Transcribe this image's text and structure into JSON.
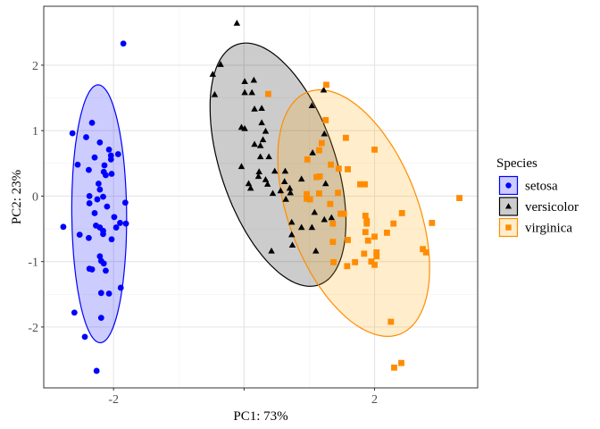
{
  "chart_data": {
    "type": "scatter",
    "title": "",
    "xlabel": "PC1: 73%",
    "ylabel": "PC2: 23%",
    "xlim": [
      -3.07,
      3.58
    ],
    "ylim": [
      -2.93,
      2.9
    ],
    "x_ticks": [
      -2,
      0,
      2
    ],
    "x_tick_labels": [
      "-2",
      "",
      "2"
    ],
    "y_ticks": [
      -2,
      -1,
      0,
      1,
      2
    ],
    "y_tick_labels": [
      "-2",
      "-1",
      "0",
      "1",
      "2"
    ],
    "grid": true,
    "legend": {
      "title": "Species",
      "position": "right"
    },
    "series": [
      {
        "name": "setosa",
        "marker": "circle",
        "color": "#0000ff",
        "ellipse": {
          "fill": "#0000ff",
          "fill_opacity": 0.2,
          "center": [
            -2.22,
            -0.27
          ],
          "semi_major": 1.97,
          "semi_minor": 0.42,
          "angle_deg": 90.5
        },
        "points": [
          [
            -1.85,
            2.33
          ],
          [
            -2.33,
            1.12
          ],
          [
            -2.63,
            0.96
          ],
          [
            -2.42,
            0.9
          ],
          [
            -2.21,
            0.82
          ],
          [
            -2.07,
            0.71
          ],
          [
            -2.04,
            0.62
          ],
          [
            -2.04,
            0.56
          ],
          [
            -2.29,
            0.59
          ],
          [
            -1.93,
            0.64
          ],
          [
            -2.55,
            0.48
          ],
          [
            -2.14,
            0.47
          ],
          [
            -2.15,
            0.37
          ],
          [
            -2.12,
            0.32
          ],
          [
            -2.03,
            0.34
          ],
          [
            -2.38,
            0.4
          ],
          [
            -2.23,
            0.19
          ],
          [
            -2.21,
            0.1
          ],
          [
            -2.25,
            -0.05
          ],
          [
            -2.16,
            -0.01
          ],
          [
            -2.29,
            -0.26
          ],
          [
            -2.1,
            -0.16
          ],
          [
            -2.37,
            0.0
          ],
          [
            -2.37,
            -0.11
          ],
          [
            -1.82,
            -0.1
          ],
          [
            -2.77,
            -0.47
          ],
          [
            -2.52,
            -0.59
          ],
          [
            -2.38,
            -0.64
          ],
          [
            -2.27,
            -0.45
          ],
          [
            -2.21,
            -0.48
          ],
          [
            -2.16,
            -0.53
          ],
          [
            -2.16,
            -0.58
          ],
          [
            -1.96,
            -0.48
          ],
          [
            -1.9,
            -0.41
          ],
          [
            -1.81,
            -0.42
          ],
          [
            -2.03,
            -0.66
          ],
          [
            -2.21,
            -0.92
          ],
          [
            -2.19,
            -0.99
          ],
          [
            -2.15,
            -1.03
          ],
          [
            -2.37,
            -1.11
          ],
          [
            -2.33,
            -1.12
          ],
          [
            -2.12,
            -1.14
          ],
          [
            -1.89,
            -1.4
          ],
          [
            -2.19,
            -1.48
          ],
          [
            -2.07,
            -1.49
          ],
          [
            -2.6,
            -1.78
          ],
          [
            -2.19,
            -1.86
          ],
          [
            -2.44,
            -2.15
          ],
          [
            -2.26,
            -2.67
          ],
          [
            -1.99,
            -0.32
          ]
        ]
      },
      {
        "name": "versicolor",
        "marker": "triangle",
        "color": "#000000",
        "ellipse": {
          "fill": "#000000",
          "fill_opacity": 0.2,
          "center": [
            0.52,
            0.48
          ],
          "semi_major": 1.94,
          "semi_minor": 0.88,
          "angle_deg": -71.2
        },
        "points": [
          [
            -0.11,
            2.64
          ],
          [
            -0.36,
            2.01
          ],
          [
            -0.48,
            1.86
          ],
          [
            -0.45,
            1.55
          ],
          [
            0.01,
            1.75
          ],
          [
            0.15,
            1.77
          ],
          [
            0.01,
            1.58
          ],
          [
            0.12,
            1.58
          ],
          [
            0.16,
            1.33
          ],
          [
            0.27,
            1.34
          ],
          [
            0.27,
            1.12
          ],
          [
            -0.04,
            1.05
          ],
          [
            0.01,
            1.03
          ],
          [
            0.33,
            0.99
          ],
          [
            0.29,
            0.86
          ],
          [
            0.16,
            0.79
          ],
          [
            0.25,
            0.77
          ],
          [
            0.25,
            0.6
          ],
          [
            0.38,
            0.6
          ],
          [
            -0.04,
            0.45
          ],
          [
            0.23,
            0.37
          ],
          [
            0.47,
            0.38
          ],
          [
            0.63,
            0.38
          ],
          [
            0.22,
            0.3
          ],
          [
            0.07,
            0.19
          ],
          [
            0.1,
            0.12
          ],
          [
            0.36,
            0.18
          ],
          [
            0.44,
            0.04
          ],
          [
            0.64,
            -0.05
          ],
          [
            0.56,
            0.08
          ],
          [
            0.62,
            0.22
          ],
          [
            0.7,
            0.12
          ],
          [
            0.71,
            0.05
          ],
          [
            0.88,
            0.26
          ],
          [
            1.25,
            0.19
          ],
          [
            1.08,
            -0.25
          ],
          [
            1.34,
            -0.33
          ],
          [
            0.73,
            -0.4
          ],
          [
            0.88,
            -0.48
          ],
          [
            1.04,
            -0.48
          ],
          [
            1.23,
            -0.36
          ],
          [
            0.73,
            -0.59
          ],
          [
            0.74,
            -0.75
          ],
          [
            0.42,
            -0.84
          ],
          [
            1.1,
            -0.84
          ],
          [
            1.22,
            1.62
          ],
          [
            1.04,
            1.38
          ],
          [
            1.23,
            0.95
          ],
          [
            1.05,
            0.66
          ],
          [
            0.33,
            0.25
          ]
        ]
      },
      {
        "name": "virginica",
        "marker": "square",
        "color": "#ff8c00",
        "ellipse": {
          "fill": "#ffa500",
          "fill_opacity": 0.2,
          "center": [
            1.68,
            -0.26
          ],
          "semi_major": 1.98,
          "semi_minor": 0.99,
          "angle_deg": -69.1
        },
        "points": [
          [
            0.37,
            1.56
          ],
          [
            1.26,
            1.7
          ],
          [
            1.25,
            1.16
          ],
          [
            1.56,
            0.89
          ],
          [
            1.19,
            0.81
          ],
          [
            1.15,
            0.7
          ],
          [
            2.0,
            0.71
          ],
          [
            0.97,
            0.56
          ],
          [
            1.33,
            0.48
          ],
          [
            1.45,
            0.42
          ],
          [
            1.59,
            0.41
          ],
          [
            1.11,
            0.29
          ],
          [
            1.16,
            0.3
          ],
          [
            1.78,
            0.18
          ],
          [
            1.85,
            0.18
          ],
          [
            1.44,
            0.05
          ],
          [
            0.96,
            0.03
          ],
          [
            1.01,
            -0.05
          ],
          [
            0.96,
            -0.04
          ],
          [
            3.3,
            -0.03
          ],
          [
            1.48,
            -0.27
          ],
          [
            1.53,
            -0.27
          ],
          [
            1.86,
            -0.3
          ],
          [
            1.88,
            -0.38
          ],
          [
            1.88,
            -0.42
          ],
          [
            2.42,
            -0.26
          ],
          [
            2.29,
            -0.42
          ],
          [
            2.88,
            -0.41
          ],
          [
            1.36,
            -0.42
          ],
          [
            1.86,
            -0.55
          ],
          [
            2.19,
            -0.56
          ],
          [
            2.0,
            -0.62
          ],
          [
            1.9,
            -0.68
          ],
          [
            1.36,
            -0.7
          ],
          [
            1.59,
            -0.67
          ],
          [
            1.84,
            -0.88
          ],
          [
            2.03,
            -0.86
          ],
          [
            2.03,
            -0.92
          ],
          [
            2.74,
            -0.81
          ],
          [
            2.79,
            -0.86
          ],
          [
            1.37,
            -1.01
          ],
          [
            1.58,
            -1.07
          ],
          [
            1.7,
            -1.01
          ],
          [
            1.95,
            -1.0
          ],
          [
            2.0,
            -1.05
          ],
          [
            2.25,
            -1.92
          ],
          [
            2.3,
            -2.62
          ],
          [
            2.41,
            -2.55
          ],
          [
            1.15,
            0.04
          ],
          [
            1.32,
            -0.12
          ]
        ]
      }
    ]
  }
}
